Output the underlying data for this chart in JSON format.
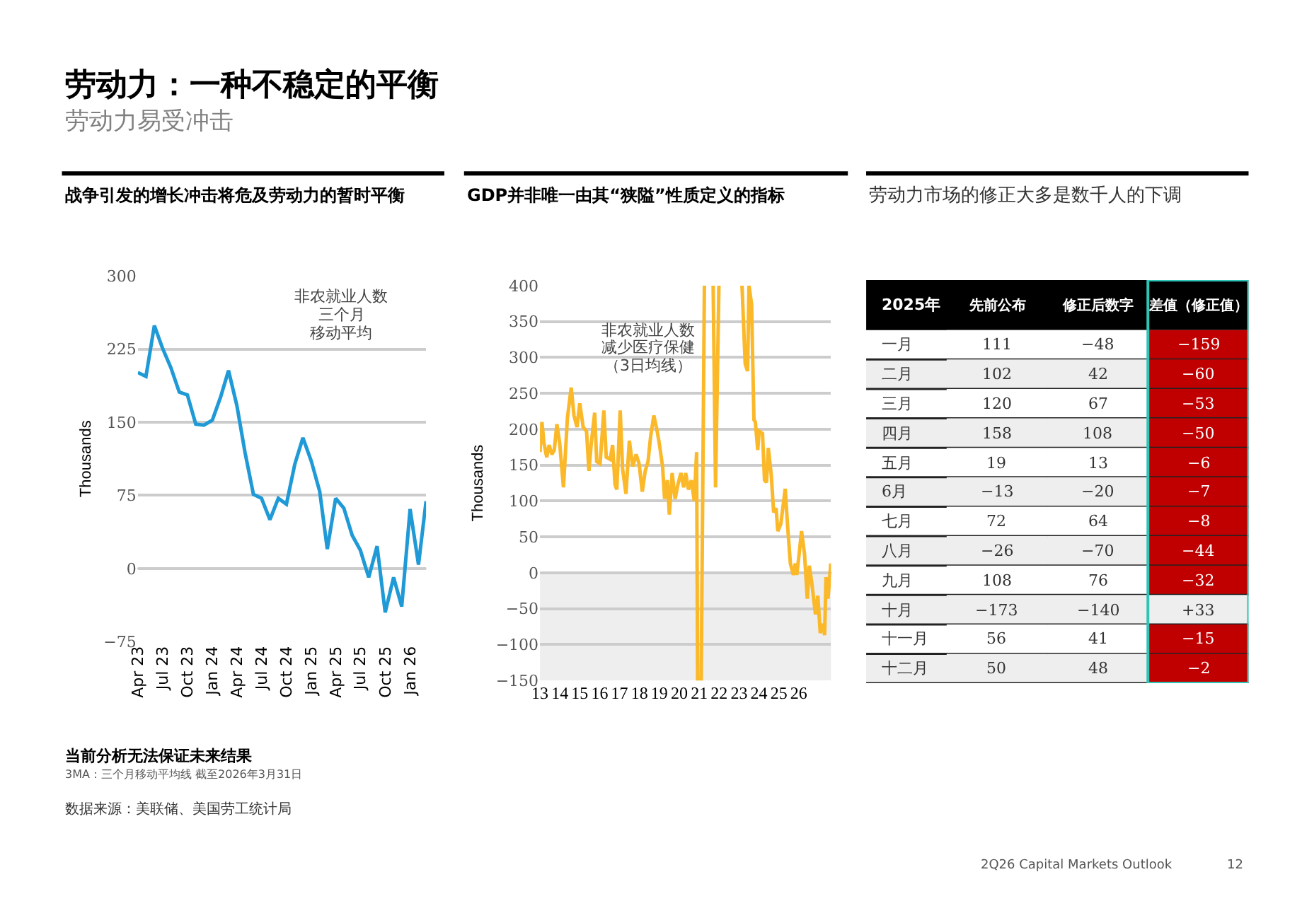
{
  "chart_data": [
    {
      "type": "line",
      "title": "战争引发的增长冲击将危及劳动力的暂时平衡",
      "ylabel": "Thousands",
      "x": [
        "2023-04",
        "2023-05",
        "2023-06",
        "2023-07",
        "2023-08",
        "2023-09",
        "2023-10",
        "2023-11",
        "2023-12",
        "2024-01",
        "2024-02",
        "2024-03",
        "2024-04",
        "2024-05",
        "2024-06",
        "2024-07",
        "2024-08",
        "2024-09",
        "2024-10",
        "2024-11",
        "2024-12",
        "2025-01",
        "2025-02",
        "2025-03",
        "2025-04",
        "2025-05",
        "2025-06",
        "2025-07",
        "2025-08",
        "2025-09",
        "2025-10",
        "2025-11",
        "2025-12",
        "2026-01",
        "2026-02",
        "2026-03"
      ],
      "series": [
        {
          "color": "#1f9ad6",
          "values": [
            201,
            197,
            249,
            226,
            206,
            181,
            178,
            148,
            147,
            152,
            176,
            203,
            167,
            119,
            76,
            72,
            50,
            72,
            66,
            107,
            134,
            110,
            79,
            20,
            72,
            62,
            34,
            19,
            -9,
            23,
            -45,
            -9,
            -39,
            61,
            4,
            69
          ]
        }
      ],
      "xlim": [
        "2023-04",
        "2026-03"
      ],
      "xticks": [
        {
          "value": "2023-04",
          "label": "Apr 23"
        },
        {
          "value": "2023-07",
          "label": "Jul 23"
        },
        {
          "value": "2023-10",
          "label": "Oct 23"
        },
        {
          "value": "2024-01",
          "label": "Jan 24"
        },
        {
          "value": "2024-04",
          "label": "Apr 24"
        },
        {
          "value": "2024-07",
          "label": "Jul 24"
        },
        {
          "value": "2024-10",
          "label": "Oct 24"
        },
        {
          "value": "2025-01",
          "label": "Jan 25"
        },
        {
          "value": "2025-04",
          "label": "Apr 25"
        },
        {
          "value": "2025-07",
          "label": "Jul 25"
        },
        {
          "value": "2025-10",
          "label": "Oct 25"
        },
        {
          "value": "2026-01",
          "label": "Jan 26"
        }
      ],
      "ylim": [
        -75,
        300
      ],
      "yticks": [
        -75,
        0,
        75,
        150,
        225,
        300
      ],
      "grid": "y",
      "marker": "none",
      "line_style": "solid",
      "ref_lines": [
        {
          "axis": "y",
          "value": 0,
          "color": "#000000"
        }
      ],
      "annotations": [
        "非农就业人数",
        "三个月",
        "移动平均",
        "劳动力：一种不稳定的平衡",
        "劳动力易受冲击",
        "当前分析无法保证未来结果",
        "3MA：三个月移动平均线 截至2026年3月31日",
        "数据来源：美联储、美国劳工统计局",
        "2Q26 Capital Markets Outlook",
        "12"
      ]
    },
    {
      "type": "line",
      "title": "GDP并非唯一由其“狭隘”性质定义的指标",
      "ylabel": "Thousands",
      "series": [
        {
          "color": "#fbb829",
          "x": [
            13.0,
            13.1,
            13.2,
            13.34,
            13.46,
            13.6,
            13.72,
            13.85,
            13.99,
            14.18,
            14.38,
            14.57,
            14.71,
            14.86,
            15.0,
            15.17,
            15.34,
            15.46,
            15.58,
            15.75,
            15.85,
            16.02,
            16.21,
            16.33,
            16.53,
            16.65,
            16.77,
            16.86,
            17.03,
            17.15,
            17.32,
            17.49,
            17.66,
            17.83,
            17.98,
            18.14,
            18.29,
            18.43,
            18.56,
            18.72,
            18.87,
            18.99,
            19.16,
            19.26,
            19.4,
            19.5,
            19.64,
            19.79,
            19.93,
            20.08,
            20.22,
            20.32,
            20.46,
            20.61,
            20.75,
            20.87,
            20.92,
            21.1,
            21.26,
            21.5,
            21.7,
            21.82,
            21.99,
            22.5,
            23.15,
            23.31,
            23.43,
            23.5,
            23.63,
            23.75,
            23.82,
            23.94,
            24.01,
            24.18,
            24.28,
            24.38,
            24.47,
            24.62,
            24.74,
            24.86,
            24.95,
            25.1,
            25.2,
            25.32,
            25.44,
            25.58,
            25.73,
            25.83,
            25.9,
            26.02,
            26.14,
            26.29,
            26.43,
            26.53,
            26.65,
            26.84,
            26.96,
            27.08,
            27.23,
            27.3,
            27.37,
            27.47,
            27.61
          ],
          "values": [
            168,
            210,
            181,
            161,
            178,
            165,
            171,
            207,
            181,
            119,
            216,
            258,
            219,
            203,
            236,
            203,
            197,
            142,
            181,
            223,
            155,
            152,
            226,
            161,
            158,
            178,
            123,
            116,
            226,
            145,
            110,
            184,
            148,
            165,
            152,
            113,
            142,
            155,
            190,
            219,
            200,
            181,
            148,
            103,
            129,
            81,
            139,
            103,
            123,
            139,
            119,
            139,
            116,
            129,
            100,
            168,
            -150,
            -150,
            400,
            null,
            400,
            119,
            400,
            null,
            400,
            291,
            281,
            400,
            374,
            213,
            210,
            171,
            197,
            194,
            129,
            126,
            174,
            136,
            84,
            90,
            58,
            68,
            90,
            117,
            65,
            13,
            -3,
            13,
            -3,
            26,
            58,
            26,
            -36,
            10,
            -13,
            -58,
            -32,
            -84,
            -71,
            -87,
            -6,
            -36,
            13
          ]
        }
      ],
      "xlim": [
        13,
        27.62
      ],
      "xticks": [
        13,
        14,
        15,
        16,
        17,
        18,
        19,
        20,
        21,
        22,
        23,
        24,
        25,
        26
      ],
      "ylim": [
        -150,
        400
      ],
      "yticks": [
        -150,
        -100,
        -50,
        0,
        50,
        100,
        150,
        200,
        250,
        300,
        350,
        400
      ],
      "grid": "y",
      "marker": "none",
      "line_style": "solid",
      "ref_lines": [
        {
          "axis": "y",
          "value": 0,
          "color": "#000000"
        }
      ],
      "bands": [
        {
          "axis": "y",
          "from": -150,
          "to": 0,
          "color": "#eeeeee"
        }
      ],
      "annotations": [
        "非农就业人数",
        "减少医疗保健",
        "（3日均线）"
      ]
    },
    {
      "type": "heatmap",
      "title": "劳动力市场的修正大多是数千人的下调",
      "ylabel": "2025年",
      "categories": [
        "先前公布",
        "修正后数字",
        "差值（修正值）"
      ],
      "y_categories": [
        "一月",
        "二月",
        "三月",
        "四月",
        "五月",
        "6月",
        "七月",
        "八月",
        "九月",
        "十月",
        "十一月",
        "十二月"
      ],
      "cells": [
        [
          111,
          -48,
          -159
        ],
        [
          102,
          42,
          -60
        ],
        [
          120,
          67,
          -53
        ],
        [
          158,
          108,
          -50
        ],
        [
          19,
          13,
          -6
        ],
        [
          -13,
          -20,
          -7
        ],
        [
          72,
          64,
          -8
        ],
        [
          -26,
          -70,
          -44
        ],
        [
          108,
          76,
          -32
        ],
        [
          -173,
          -140,
          33
        ],
        [
          56,
          41,
          -15
        ],
        [
          50,
          48,
          -2
        ]
      ],
      "cell_labels": [
        [
          "111",
          "−48",
          "−159"
        ],
        [
          "102",
          "42",
          "−60"
        ],
        [
          "120",
          "67",
          "−53"
        ],
        [
          "158",
          "108",
          "−50"
        ],
        [
          "19",
          "13",
          "−6"
        ],
        [
          "−13",
          "−20",
          "−7"
        ],
        [
          "72",
          "64",
          "−8"
        ],
        [
          "−26",
          "−70",
          "−44"
        ],
        [
          "108",
          "76",
          "−32"
        ],
        [
          "−173",
          "−140",
          "+33"
        ],
        [
          "56",
          "41",
          "−15"
        ],
        [
          "50",
          "48",
          "−2"
        ]
      ]
    }
  ]
}
